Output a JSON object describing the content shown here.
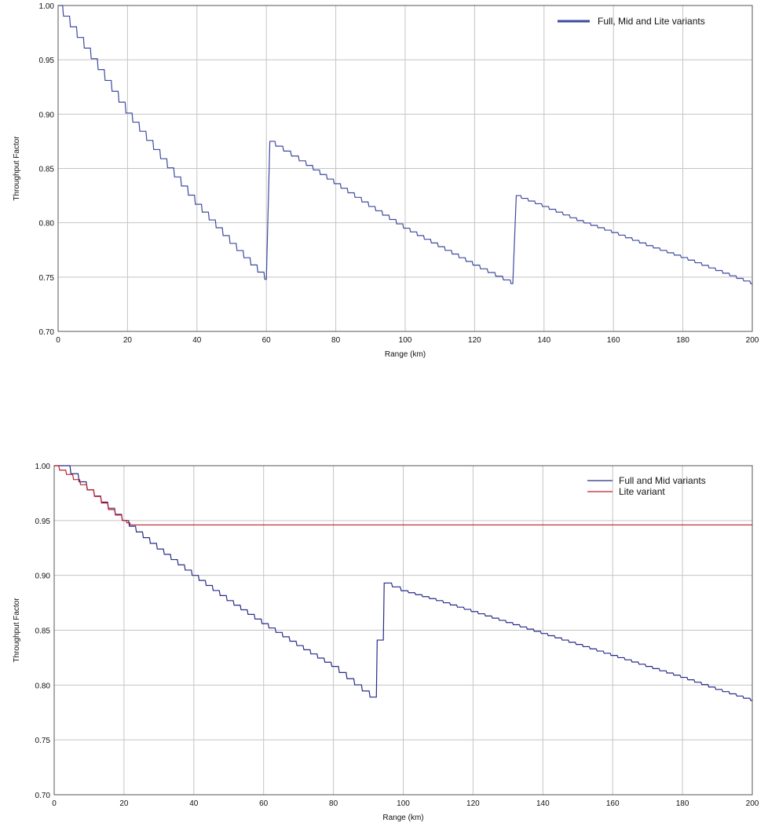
{
  "chart_data": [
    {
      "type": "line",
      "title": "",
      "xlabel": "Range (km)",
      "ylabel": "Throughput Factor",
      "xlim": [
        0,
        200
      ],
      "ylim": [
        0.7,
        1.0
      ],
      "x_ticks": [
        "0",
        "20",
        "40",
        "60",
        "80",
        "100",
        "120",
        "140",
        "160",
        "180",
        "200"
      ],
      "y_ticks": [
        "1.00",
        "0.95",
        "0.90",
        "0.85",
        "0.80",
        "0.75",
        "0.70"
      ],
      "grid": true,
      "legend_position": "top-right",
      "series": [
        {
          "name": "Full, Mid and Lite variants",
          "color": "#3d4a9e",
          "x": [
            0,
            10,
            20,
            30,
            40,
            50,
            60,
            61,
            70,
            80,
            90,
            100,
            110,
            120,
            131,
            132,
            140,
            150,
            160,
            170,
            180,
            190,
            200
          ],
          "y": [
            1.0,
            0.951,
            0.901,
            0.859,
            0.817,
            0.781,
            0.748,
            0.875,
            0.857,
            0.836,
            0.815,
            0.795,
            0.778,
            0.761,
            0.744,
            0.825,
            0.815,
            0.802,
            0.791,
            0.779,
            0.768,
            0.756,
            0.744
          ]
        }
      ]
    },
    {
      "type": "line",
      "title": "",
      "xlabel": "Range (km)",
      "ylabel": "Throughput Factor",
      "xlim": [
        0,
        200
      ],
      "ylim": [
        0.7,
        1.0
      ],
      "x_ticks": [
        "0",
        "20",
        "40",
        "60",
        "80",
        "100",
        "120",
        "140",
        "160",
        "180",
        "200"
      ],
      "y_ticks": [
        "1.00",
        "0.95",
        "0.90",
        "0.85",
        "0.80",
        "0.75",
        "0.70"
      ],
      "grid": true,
      "legend_position": "top-right",
      "series": [
        {
          "name": "Full and Mid variants",
          "color": "#262b86",
          "x": [
            0,
            3,
            10,
            20,
            30,
            40,
            50,
            60,
            70,
            80,
            91,
            95,
            100,
            110,
            120,
            130,
            140,
            150,
            160,
            170,
            180,
            190,
            200
          ],
          "y": [
            1.0,
            1.0,
            0.978,
            0.95,
            0.924,
            0.9,
            0.877,
            0.856,
            0.836,
            0.817,
            0.789,
            0.893,
            0.886,
            0.877,
            0.867,
            0.857,
            0.847,
            0.837,
            0.827,
            0.817,
            0.807,
            0.796,
            0.786
          ]
        },
        {
          "name": "Lite variant",
          "color": "#c21e2b",
          "x": [
            0,
            4,
            10,
            16,
            20,
            22,
            200
          ],
          "y": [
            1.0,
            0.992,
            0.978,
            0.96,
            0.95,
            0.946,
            0.946
          ]
        }
      ]
    }
  ]
}
